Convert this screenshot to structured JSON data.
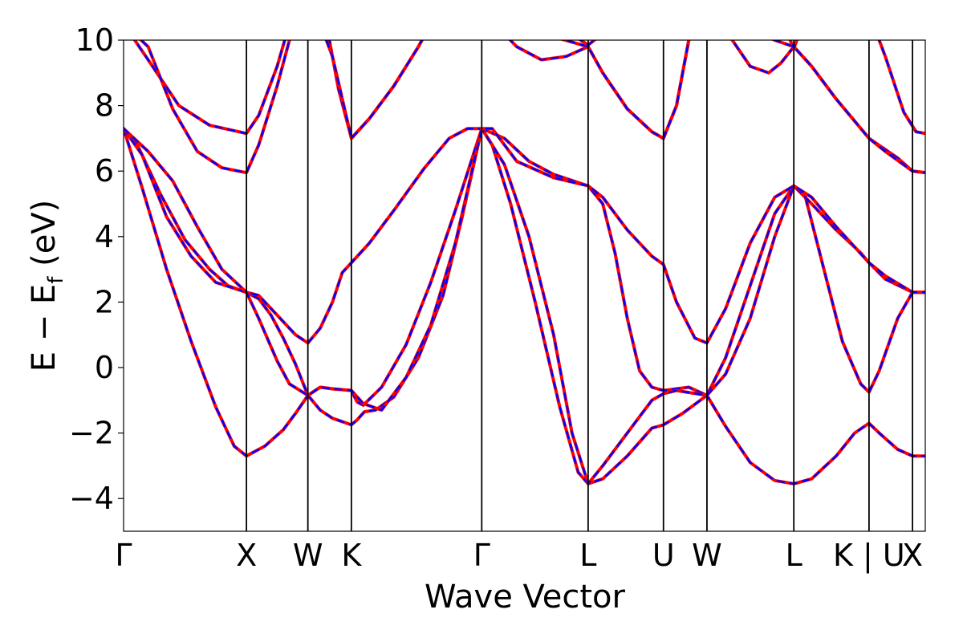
{
  "chart_data": {
    "type": "line",
    "xlabel": "Wave Vector",
    "ylabel": {
      "main": "E − E",
      "sub": "f",
      "unit": " (eV)"
    },
    "ylim": [
      -5,
      10
    ],
    "xlim": [
      0,
      6.525
    ],
    "yticks": [
      -4,
      -2,
      0,
      2,
      4,
      6,
      8,
      10
    ],
    "kpoints": [
      {
        "label": "Γ",
        "x": 0.0
      },
      {
        "label": "X",
        "x": 1.0
      },
      {
        "label": "W",
        "x": 1.5
      },
      {
        "label": "K",
        "x": 1.854
      },
      {
        "label": "Γ",
        "x": 2.915
      },
      {
        "label": "L",
        "x": 3.781
      },
      {
        "label": "U",
        "x": 4.394
      },
      {
        "label": "W",
        "x": 4.748
      },
      {
        "label": "L",
        "x": 5.455
      },
      {
        "label": "K | U",
        "x": 6.067
      },
      {
        "label": "X",
        "x": 6.421
      }
    ],
    "series_styles": [
      {
        "color": "#ff0000",
        "dash": "solid"
      },
      {
        "color": "#0000ff",
        "dash": "dashed"
      }
    ],
    "bands": [
      [
        [
          0,
          7.3
        ],
        [
          0.1,
          6.9
        ],
        [
          0.3,
          5.3
        ],
        [
          0.5,
          3.9
        ],
        [
          0.7,
          3.0
        ],
        [
          0.85,
          2.5
        ],
        [
          1.0,
          2.3
        ],
        [
          1.1,
          2.1
        ],
        [
          1.2,
          1.6
        ],
        [
          1.3,
          0.9
        ],
        [
          1.4,
          0.1
        ],
        [
          1.5,
          -0.85
        ],
        [
          1.6,
          -1.3
        ],
        [
          1.7,
          -1.55
        ],
        [
          1.854,
          -1.75
        ],
        [
          1.9,
          -1.6
        ],
        [
          1.96,
          -1.35
        ],
        [
          2.05,
          -1.3
        ],
        [
          2.2,
          -0.9
        ],
        [
          2.4,
          0.3
        ],
        [
          2.6,
          2.2
        ],
        [
          2.75,
          4.5
        ],
        [
          2.915,
          7.3
        ],
        [
          3.0,
          6.8
        ],
        [
          3.15,
          5.0
        ],
        [
          3.35,
          2.0
        ],
        [
          3.55,
          -1.2
        ],
        [
          3.7,
          -3.2
        ],
        [
          3.781,
          -3.55
        ],
        [
          3.9,
          -3.4
        ],
        [
          4.1,
          -2.7
        ],
        [
          4.3,
          -1.85
        ],
        [
          4.394,
          -1.75
        ],
        [
          4.55,
          -1.4
        ],
        [
          4.748,
          -0.85
        ],
        [
          4.9,
          -1.8
        ],
        [
          5.1,
          -2.9
        ],
        [
          5.3,
          -3.45
        ],
        [
          5.455,
          -3.55
        ],
        [
          5.6,
          -3.4
        ],
        [
          5.8,
          -2.7
        ],
        [
          5.95,
          -2.0
        ],
        [
          6.067,
          -1.7
        ],
        [
          6.15,
          -2.0
        ],
        [
          6.3,
          -2.5
        ],
        [
          6.421,
          -2.7
        ],
        [
          6.525,
          -2.7
        ]
      ],
      [
        [
          0,
          7.3
        ],
        [
          0.15,
          5.5
        ],
        [
          0.35,
          3.0
        ],
        [
          0.55,
          0.8
        ],
        [
          0.75,
          -1.2
        ],
        [
          0.9,
          -2.4
        ],
        [
          1.0,
          -2.7
        ],
        [
          1.15,
          -2.4
        ],
        [
          1.3,
          -1.9
        ],
        [
          1.4,
          -1.4
        ],
        [
          1.5,
          -0.85
        ],
        [
          1.6,
          -0.6
        ],
        [
          1.7,
          -0.65
        ],
        [
          1.854,
          -0.7
        ],
        [
          1.9,
          -1.05
        ],
        [
          1.95,
          -1.15
        ],
        [
          2.1,
          -0.6
        ],
        [
          2.3,
          0.7
        ],
        [
          2.5,
          2.6
        ],
        [
          2.7,
          4.8
        ],
        [
          2.915,
          7.3
        ],
        [
          3.1,
          7.0
        ],
        [
          3.3,
          6.3
        ],
        [
          3.5,
          5.9
        ],
        [
          3.781,
          5.55
        ],
        [
          3.9,
          5.0
        ],
        [
          4.0,
          3.5
        ],
        [
          4.1,
          1.5
        ],
        [
          4.2,
          -0.1
        ],
        [
          4.3,
          -0.6
        ],
        [
          4.394,
          -0.7
        ],
        [
          4.5,
          -0.65
        ],
        [
          4.6,
          -0.6
        ],
        [
          4.748,
          -0.85
        ],
        [
          4.9,
          0.3
        ],
        [
          5.1,
          2.5
        ],
        [
          5.3,
          4.7
        ],
        [
          5.455,
          5.55
        ],
        [
          5.55,
          5.2
        ],
        [
          5.7,
          3.0
        ],
        [
          5.85,
          0.8
        ],
        [
          6.0,
          -0.5
        ],
        [
          6.067,
          -0.75
        ],
        [
          6.15,
          -0.1
        ],
        [
          6.3,
          1.5
        ],
        [
          6.421,
          2.3
        ],
        [
          6.525,
          2.3
        ]
      ],
      [
        [
          0,
          7.3
        ],
        [
          0.15,
          6.5
        ],
        [
          0.35,
          4.6
        ],
        [
          0.55,
          3.4
        ],
        [
          0.75,
          2.6
        ],
        [
          1.0,
          2.3
        ],
        [
          1.1,
          2.2
        ],
        [
          1.25,
          1.6
        ],
        [
          1.4,
          1.0
        ],
        [
          1.5,
          0.75
        ],
        [
          1.6,
          1.2
        ],
        [
          1.7,
          2.0
        ],
        [
          1.78,
          2.9
        ],
        [
          1.854,
          3.2
        ],
        [
          2.0,
          3.8
        ],
        [
          2.2,
          4.8
        ],
        [
          2.45,
          6.1
        ],
        [
          2.65,
          7.0
        ],
        [
          2.8,
          7.3
        ],
        [
          2.915,
          7.3
        ],
        [
          3.1,
          6.2
        ],
        [
          3.3,
          4.0
        ],
        [
          3.5,
          1.0
        ],
        [
          3.65,
          -2.0
        ],
        [
          3.781,
          -3.55
        ],
        [
          3.9,
          -3.0
        ],
        [
          4.1,
          -2.0
        ],
        [
          4.3,
          -1.0
        ],
        [
          4.394,
          -0.8
        ],
        [
          4.5,
          -0.7
        ],
        [
          4.748,
          -0.85
        ],
        [
          4.9,
          -0.2
        ],
        [
          5.1,
          1.5
        ],
        [
          5.3,
          4.0
        ],
        [
          5.455,
          5.55
        ],
        [
          5.6,
          5.0
        ],
        [
          5.8,
          4.2
        ],
        [
          6.0,
          3.5
        ],
        [
          6.067,
          3.2
        ],
        [
          6.2,
          2.7
        ],
        [
          6.421,
          2.3
        ],
        [
          6.525,
          2.3
        ]
      ],
      [
        [
          0,
          7.3
        ],
        [
          0.2,
          6.6
        ],
        [
          0.4,
          5.7
        ],
        [
          0.6,
          4.3
        ],
        [
          0.8,
          3.0
        ],
        [
          1.0,
          2.3
        ],
        [
          1.1,
          1.5
        ],
        [
          1.25,
          0.2
        ],
        [
          1.35,
          -0.5
        ],
        [
          1.5,
          -0.85
        ],
        [
          1.6,
          -0.6
        ],
        [
          1.7,
          -0.65
        ],
        [
          1.854,
          -0.7
        ],
        [
          1.95,
          -1.1
        ],
        [
          2.1,
          -1.3
        ],
        [
          2.3,
          -0.3
        ],
        [
          2.5,
          1.3
        ],
        [
          2.7,
          3.8
        ],
        [
          2.915,
          7.3
        ],
        [
          3.0,
          7.3
        ],
        [
          3.2,
          6.3
        ],
        [
          3.5,
          5.8
        ],
        [
          3.781,
          5.55
        ],
        [
          3.9,
          5.2
        ],
        [
          4.1,
          4.2
        ],
        [
          4.3,
          3.4
        ],
        [
          4.394,
          3.15
        ],
        [
          4.5,
          2.0
        ],
        [
          4.65,
          0.9
        ],
        [
          4.748,
          0.75
        ],
        [
          4.9,
          1.8
        ],
        [
          5.1,
          3.8
        ],
        [
          5.3,
          5.2
        ],
        [
          5.455,
          5.55
        ],
        [
          5.6,
          5.2
        ],
        [
          5.8,
          4.3
        ],
        [
          6.067,
          3.2
        ],
        [
          6.2,
          2.8
        ],
        [
          6.421,
          2.3
        ],
        [
          6.525,
          2.3
        ]
      ],
      [
        [
          0,
          10.5
        ],
        [
          0.2,
          9.4
        ],
        [
          0.45,
          8.0
        ],
        [
          0.7,
          7.4
        ],
        [
          1.0,
          7.15
        ],
        [
          1.1,
          7.7
        ],
        [
          1.25,
          9.2
        ],
        [
          1.35,
          10.5
        ],
        [
          1.5,
          10.8
        ],
        [
          1.65,
          10.5
        ],
        [
          1.75,
          8.5
        ],
        [
          1.854,
          7.0
        ],
        [
          2.0,
          7.6
        ],
        [
          2.2,
          8.6
        ],
        [
          2.4,
          9.8
        ],
        [
          2.5,
          10.5
        ],
        [
          2.915,
          10.9
        ],
        [
          3.2,
          9.8
        ],
        [
          3.4,
          9.4
        ],
        [
          3.6,
          9.5
        ],
        [
          3.781,
          9.8
        ],
        [
          3.9,
          9.0
        ],
        [
          4.1,
          7.9
        ],
        [
          4.3,
          7.2
        ],
        [
          4.394,
          7.0
        ],
        [
          4.5,
          8.0
        ],
        [
          4.6,
          10.0
        ],
        [
          4.748,
          10.8
        ],
        [
          4.9,
          10.3
        ],
        [
          5.1,
          9.2
        ],
        [
          5.25,
          9.0
        ],
        [
          5.35,
          9.3
        ],
        [
          5.455,
          9.8
        ],
        [
          5.6,
          9.2
        ],
        [
          5.8,
          8.2
        ],
        [
          6.067,
          7.0
        ],
        [
          6.3,
          6.4
        ],
        [
          6.421,
          6.0
        ],
        [
          6.525,
          5.95
        ]
      ],
      [
        [
          0,
          10.5
        ],
        [
          0.2,
          9.8
        ],
        [
          0.4,
          7.9
        ],
        [
          0.6,
          6.6
        ],
        [
          0.8,
          6.1
        ],
        [
          1.0,
          5.95
        ],
        [
          1.1,
          6.8
        ],
        [
          1.25,
          8.6
        ],
        [
          1.35,
          10.0
        ],
        [
          1.4,
          10.5
        ],
        [
          1.5,
          10.8
        ],
        [
          1.6,
          10.5
        ],
        [
          1.7,
          9.5
        ],
        [
          1.854,
          7.0
        ],
        [
          2.0,
          7.6
        ],
        [
          2.2,
          8.6
        ],
        [
          2.4,
          9.8
        ],
        [
          2.5,
          10.5
        ],
        [
          2.915,
          10.9
        ],
        [
          3.2,
          10.4
        ],
        [
          3.5,
          10.1
        ],
        [
          3.781,
          9.8
        ],
        [
          3.9,
          9.0
        ],
        [
          4.1,
          7.9
        ],
        [
          4.3,
          7.2
        ],
        [
          4.394,
          7.0
        ],
        [
          4.5,
          8.0
        ],
        [
          4.6,
          10.0
        ],
        [
          4.748,
          10.8
        ],
        [
          5.0,
          10.5
        ],
        [
          5.3,
          10.0
        ],
        [
          5.455,
          9.8
        ],
        [
          5.6,
          9.2
        ],
        [
          5.8,
          8.2
        ],
        [
          6.067,
          7.0
        ],
        [
          6.2,
          6.6
        ],
        [
          6.421,
          6.0
        ],
        [
          6.525,
          5.95
        ]
      ],
      [
        [
          3.6,
          10.3
        ],
        [
          3.781,
          9.85
        ],
        [
          3.9,
          10.2
        ]
      ],
      [
        [
          5.4,
          10.2
        ],
        [
          5.455,
          9.75
        ],
        [
          5.5,
          10.2
        ]
      ],
      [
        [
          6.1,
          10.5
        ],
        [
          6.2,
          9.5
        ],
        [
          6.35,
          7.8
        ],
        [
          6.45,
          7.2
        ],
        [
          6.525,
          7.15
        ]
      ]
    ]
  }
}
